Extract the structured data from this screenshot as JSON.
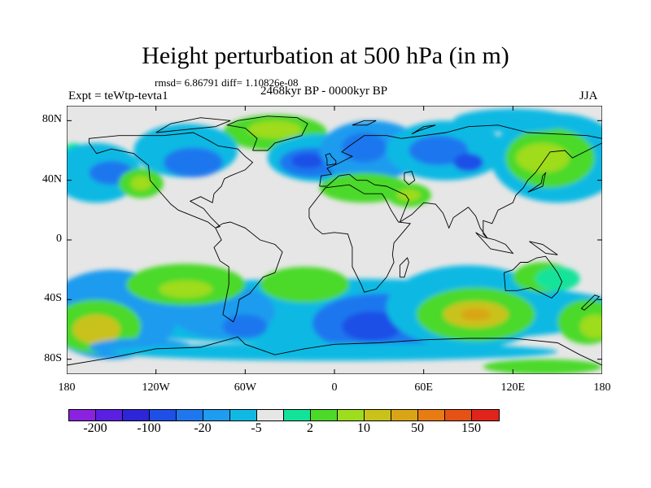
{
  "title": "Height perturbation at 500 hPa (in m)",
  "stats": "rmsd= 6.86791 diff= 1.10826e-08",
  "experiment": "Expt = teWtp-tevta1",
  "period": "2468kyr BP - 0000kyr BP",
  "season": "JJA",
  "map": {
    "projection": "cylindrical-equidistant",
    "lat_range": [
      -90,
      90
    ],
    "lon_range": [
      -180,
      180
    ],
    "lat_labels": [
      "80N",
      "40N",
      "0",
      "40S",
      "80S"
    ],
    "lon_labels": [
      "180",
      "120W",
      "60W",
      "0",
      "60E",
      "120E",
      "180"
    ],
    "coastlines": true
  },
  "colorbar": {
    "colors": [
      "#8a22e0",
      "#5a1fe0",
      "#2e25d8",
      "#1e4fe6",
      "#1f77ee",
      "#1f9bef",
      "#10b9e3",
      "#e6e6e6",
      "#13e39a",
      "#4cd92a",
      "#9edc1e",
      "#c9c21a",
      "#d9a516",
      "#e77c15",
      "#e65216",
      "#e1241b"
    ],
    "labels": [
      "-200",
      "-100",
      "-20",
      "-5",
      "2",
      "10",
      "50",
      "150"
    ]
  }
}
